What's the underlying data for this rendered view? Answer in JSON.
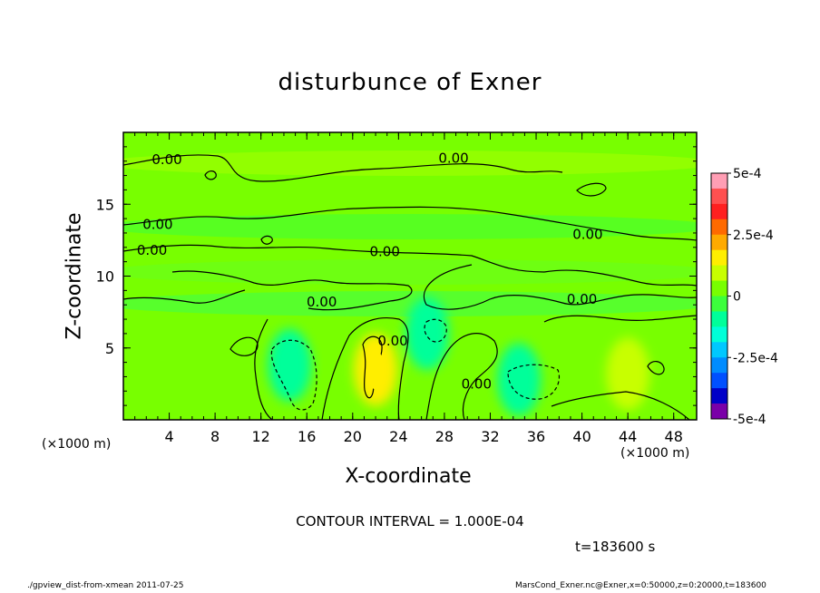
{
  "chart_data": {
    "type": "heatmap",
    "title": "disturbunce of Exner",
    "xlabel": "X-coordinate",
    "ylabel": "Z-coordinate",
    "x_unit_label": "(×1000 m)",
    "xlim": [
      0,
      50
    ],
    "ylim": [
      0,
      20
    ],
    "x_ticks": [
      4,
      8,
      12,
      16,
      20,
      24,
      28,
      32,
      36,
      40,
      44,
      48
    ],
    "y_ticks": [
      5,
      10,
      15
    ],
    "colorbar": {
      "range": [
        -0.0005,
        0.0005
      ],
      "tick_labels": [
        "5e-4",
        "2.5e-4",
        "0",
        "-2.5e-4",
        "-5e-4"
      ],
      "tick_values": [
        0.0005,
        0.00025,
        0,
        -0.00025,
        -0.0005
      ],
      "colors": [
        "#ff9eb4",
        "#ff5050",
        "#ff2020",
        "#ff6a00",
        "#ffaa00",
        "#ffee00",
        "#c8ff00",
        "#78ff00",
        "#3cff3c",
        "#00ff9a",
        "#00ffd8",
        "#00c8ff",
        "#008cff",
        "#0050ff",
        "#0000c8",
        "#7a00a8"
      ]
    },
    "contour_interval_text": "CONTOUR INTERVAL = 1.000E-04",
    "contour_labels": [
      {
        "x": 3.8,
        "z": 18.1,
        "text": "0.00"
      },
      {
        "x": 28.8,
        "z": 18.2,
        "text": "0.00"
      },
      {
        "x": 3.0,
        "z": 13.6,
        "text": "0.00"
      },
      {
        "x": 40.5,
        "z": 12.9,
        "text": "0.00"
      },
      {
        "x": 2.5,
        "z": 11.8,
        "text": "0.00"
      },
      {
        "x": 22.8,
        "z": 11.7,
        "text": "0.00"
      },
      {
        "x": 17.3,
        "z": 8.2,
        "text": "0.00"
      },
      {
        "x": 40.0,
        "z": 8.4,
        "text": "0.00"
      },
      {
        "x": 23.5,
        "z": 5.5,
        "text": "0.00"
      },
      {
        "x": 30.8,
        "z": 2.5,
        "text": "0.00"
      }
    ],
    "field_features": [
      {
        "x": 22,
        "z": 3.5,
        "sign": "positive",
        "level": 2
      },
      {
        "x": 14.5,
        "z": 3.8,
        "sign": "negative",
        "level": 1
      },
      {
        "x": 34.5,
        "z": 2.8,
        "sign": "negative",
        "level": 1
      },
      {
        "x": 44,
        "z": 3.2,
        "sign": "positive",
        "level": 1
      },
      {
        "x": 26.5,
        "z": 6,
        "sign": "negative",
        "level": 1
      }
    ]
  },
  "time_label": "t=183600 s",
  "footer_left": "./gpview_dist-from-xmean  2011-07-25",
  "footer_right": "MarsCond_Exner.nc@Exner,x=0:50000,z=0:20000,t=183600"
}
